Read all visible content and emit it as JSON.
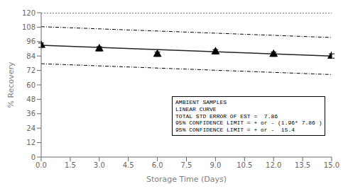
{
  "chart_data": {
    "type": "scatter",
    "xlabel": "Storage Time (Days)",
    "ylabel": "% Recovery",
    "xlim": [
      0,
      15
    ],
    "ylim": [
      0,
      120
    ],
    "xticks": [
      {
        "value": 0,
        "label": "0.0"
      },
      1.5,
      {
        "value": 3,
        "label": "3.0"
      },
      4.5,
      {
        "value": 6,
        "label": "6.0"
      },
      7.5,
      {
        "value": 9,
        "label": "9.0"
      },
      10.5,
      {
        "value": 12,
        "label": "12.0"
      },
      13.5,
      {
        "value": 15,
        "label": "15.0"
      }
    ],
    "yticks": [
      0,
      12,
      24,
      36,
      48,
      60,
      72,
      84,
      96,
      108,
      120
    ],
    "grid": false,
    "series": [
      {
        "type": "line",
        "x": [
          0,
          15
        ],
        "values": [
          120.0,
          120.0
        ],
        "color": "#000000",
        "line_style": "dotted"
      },
      {
        "type": "line",
        "x": [
          0,
          15
        ],
        "values": [
          108.4,
          99.4
        ],
        "color": "#000000",
        "line_style": "dashdot"
      },
      {
        "type": "line",
        "x": [
          0,
          15
        ],
        "values": [
          77.6,
          68.6
        ],
        "color": "#000000",
        "line_style": "dashdot"
      },
      {
        "type": "line",
        "x": [
          0,
          15
        ],
        "values": [
          93.0,
          84.0
        ],
        "color": "#222222",
        "line_style": "solid"
      },
      {
        "type": "scatter",
        "x": [
          0,
          3,
          6,
          9,
          12,
          15
        ],
        "values": [
          93.0,
          90.0,
          85.5,
          87.5,
          85.5,
          84.0
        ],
        "error": [
          1.8,
          1.8,
          1.8,
          1.8,
          1.8,
          1.8
        ],
        "color": "#000000",
        "marker": "triangle"
      }
    ],
    "annotations": [
      "AMBIENT SAMPLES",
      "LINEAR CURVE",
      "TOTAL STD ERROR OF EST =  7.86",
      "95% CONFIDENCE LIMIT = + or - (1.96* 7.86 )",
      "95% CONFIDENCE LIMIT = + or -  15.4"
    ]
  }
}
